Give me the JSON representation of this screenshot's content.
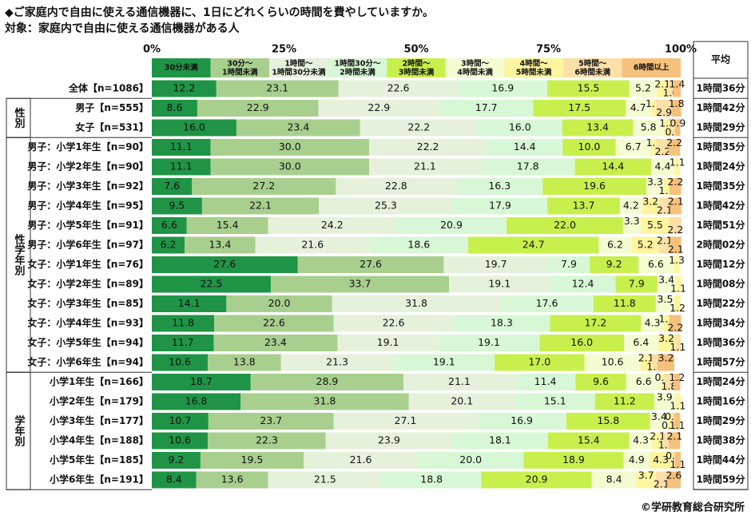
{
  "chart_data": {
    "type": "stacked-bar-horizontal",
    "title": "◆ご家庭内で自由に使える通信機器に、1日にどれくらいの時間を費やしていますか。",
    "subtitle": "対象：家庭内で自由に使える通信機器がある人",
    "copyright": "©学研教育総合研究所",
    "average_header": "平均",
    "xlim": [
      0,
      100
    ],
    "xticks": [
      {
        "value": 0,
        "label": "0%"
      },
      {
        "value": 25,
        "label": "25%"
      },
      {
        "value": 50,
        "label": "50%"
      },
      {
        "value": 75,
        "label": "75%"
      },
      {
        "value": 100,
        "label": "100%"
      }
    ],
    "series": [
      {
        "name": "30分未満",
        "color": "#1f9446"
      },
      {
        "name": "30分～\n1時間未満",
        "color": "#a9cf8f"
      },
      {
        "name": "1時間～\n1時間30分未満",
        "color": "#e6f1dc"
      },
      {
        "name": "1時間30分～\n2時間未満",
        "color": "#d8f7d6"
      },
      {
        "name": "2時間～\n3時間未満",
        "color": "#c8f04c"
      },
      {
        "name": "3時間～\n4時間未満",
        "color": "#f4fcd2"
      },
      {
        "name": "4時間～\n5時間未満",
        "color": "#fff59f"
      },
      {
        "name": "5時間～\n6時間未満",
        "color": "#fde0a8"
      },
      {
        "name": "6時間以上",
        "color": "#f6c17c"
      }
    ],
    "groups": [
      {
        "label": null,
        "rows": [
          {
            "category": "全体【n=1086】",
            "values": [
              12.2,
              23.1,
              22.6,
              16.9,
              15.5,
              5.2,
              2.1,
              1.0,
              1.4
            ],
            "value_labels": [
              "12.2",
              "23.1",
              "22.6",
              "16.9",
              "15.5",
              "5.2",
              "2.1",
              "1.0",
              "1.4"
            ],
            "average": "1時間36分"
          }
        ]
      },
      {
        "label": "性別",
        "rows": [
          {
            "category": "男子【n=555】",
            "values": [
              8.6,
              22.9,
              22.9,
              17.7,
              17.5,
              4.7,
              1.1,
              2.9,
              1.8
            ],
            "average": "1時間42分"
          },
          {
            "category": "女子【n=531】",
            "values": [
              16.0,
              23.4,
              22.2,
              16.0,
              13.4,
              5.8,
              1.3,
              0.9,
              0.9
            ],
            "value_labels": [
              "16.0",
              "23.4",
              "22.2",
              "16.0",
              "13.4",
              "5.8",
              "1.3",
              "0.9",
              "0.9"
            ],
            "average": "1時間29分"
          }
        ]
      },
      {
        "label": "性学年別",
        "rows": [
          {
            "category": "男子：小学1年生【n=90】",
            "values": [
              11.1,
              30.0,
              22.2,
              14.4,
              10.0,
              6.7,
              1.1,
              2.2,
              2.2
            ],
            "value_labels": [
              "11.1",
              "30.0",
              "22.2",
              "14.4",
              "10.0",
              "6.7",
              "1.1",
              "2.2",
              "2.2"
            ],
            "average": "1時間35分"
          },
          {
            "category": "男子：小学2年生【n=90】",
            "values": [
              11.1,
              30.0,
              21.1,
              17.8,
              14.4,
              4.4,
              1.1,
              0,
              0
            ],
            "value_labels": [
              "11.1",
              "30.0",
              "21.1",
              "17.8",
              "14.4",
              "4.4",
              "1.1",
              null,
              null
            ],
            "average": "1時間24分"
          },
          {
            "category": "男子：小学3年生【n=92】",
            "values": [
              7.6,
              27.2,
              22.8,
              16.3,
              19.6,
              3.3,
              1.1,
              0,
              2.2
            ],
            "average": "1時間35分"
          },
          {
            "category": "男子：小学4年生【n=95】",
            "values": [
              9.5,
              22.1,
              25.3,
              17.9,
              13.7,
              4.2,
              3.2,
              2.1,
              2.1
            ],
            "average": "1時間42分"
          },
          {
            "category": "男子：小学5年生【n=91】",
            "values": [
              6.6,
              15.4,
              24.2,
              20.9,
              22.0,
              3.3,
              5.5,
              2.2,
              0
            ],
            "value_labels": [
              "6.6",
              "15.4",
              "24.2",
              "20.9",
              "22.0",
              "3.3",
              "5.5",
              "2.2",
              null
            ],
            "average": "1時間51分"
          },
          {
            "category": "男子：小学6年生【n=97】",
            "values": [
              6.2,
              13.4,
              21.6,
              18.6,
              24.7,
              6.2,
              5.2,
              2.1,
              2.1
            ],
            "average": "2時間02分"
          },
          {
            "category": "女子：小学1年生【n=76】",
            "values": [
              27.6,
              27.6,
              19.7,
              7.9,
              9.2,
              6.6,
              1.3,
              0,
              0
            ],
            "average": "1時間12分"
          },
          {
            "category": "女子：小学2年生【n=89】",
            "values": [
              22.5,
              33.7,
              19.1,
              12.4,
              7.9,
              3.4,
              1.1,
              0,
              0
            ],
            "average": "1時間08分"
          },
          {
            "category": "女子：小学3年生【n=85】",
            "values": [
              14.1,
              20.0,
              31.8,
              17.6,
              11.8,
              3.5,
              1.2,
              0,
              0
            ],
            "value_labels": [
              "14.1",
              "20.0",
              "31.8",
              "17.6",
              "11.8",
              "3.5",
              "1.2",
              null,
              null
            ],
            "average": "1時間22分"
          },
          {
            "category": "女子：小学4年生【n=93】",
            "values": [
              11.8,
              22.6,
              22.6,
              18.3,
              17.2,
              4.3,
              1.1,
              0,
              2.2
            ],
            "average": "1時間34分"
          },
          {
            "category": "女子：小学5年生【n=94】",
            "values": [
              11.7,
              23.4,
              19.1,
              19.1,
              16.0,
              6.4,
              3.2,
              1.1,
              0
            ],
            "value_labels": [
              "11.7",
              "23.4",
              "19.1",
              "19.1",
              "16.0",
              "6.4",
              "3.2",
              "1.1",
              null
            ],
            "average": "1時間36分"
          },
          {
            "category": "女子：小学6年生【n=94】",
            "values": [
              10.6,
              13.8,
              21.3,
              19.1,
              17.0,
              10.6,
              2.1,
              1.1,
              3.2
            ],
            "value_labels": [
              "10.6",
              "13.8",
              "21.3",
              "19.1",
              "17.0",
              "10.6",
              "2.1",
              "1.1",
              "3.2"
            ],
            "average": "1時間57分"
          }
        ]
      },
      {
        "label": "学年別",
        "rows": [
          {
            "category": "小学1年生【n=166】",
            "values": [
              18.7,
              28.9,
              21.1,
              11.4,
              9.6,
              6.6,
              0.6,
              1.8,
              1.2
            ],
            "average": "1時間24分"
          },
          {
            "category": "小学2年生【n=179】",
            "values": [
              16.8,
              31.8,
              20.1,
              15.1,
              11.2,
              3.9,
              1.1,
              0,
              0
            ],
            "average": "1時間16分"
          },
          {
            "category": "小学3年生【n=177】",
            "values": [
              10.7,
              23.7,
              27.1,
              16.9,
              15.8,
              3.4,
              0.6,
              0.6,
              1.1
            ],
            "average": "1時間29分"
          },
          {
            "category": "小学4年生【n=188】",
            "values": [
              10.6,
              22.3,
              23.9,
              18.1,
              15.4,
              4.3,
              2.1,
              1.1,
              2.1
            ],
            "average": "1時間38分"
          },
          {
            "category": "小学5年生【n=185】",
            "values": [
              9.2,
              19.5,
              21.6,
              20.0,
              18.9,
              4.9,
              4.3,
              0.5,
              1.1
            ],
            "value_labels": [
              "9.2",
              "19.5",
              "21.6",
              "20.0",
              "18.9",
              "4.9",
              "4.3",
              "0.5",
              "1.1"
            ],
            "average": "1時間44分"
          },
          {
            "category": "小学6年生【n=191】",
            "values": [
              8.4,
              13.6,
              21.5,
              18.8,
              20.9,
              8.4,
              3.7,
              2.1,
              2.6
            ],
            "average": "1時間59分"
          }
        ]
      }
    ]
  }
}
